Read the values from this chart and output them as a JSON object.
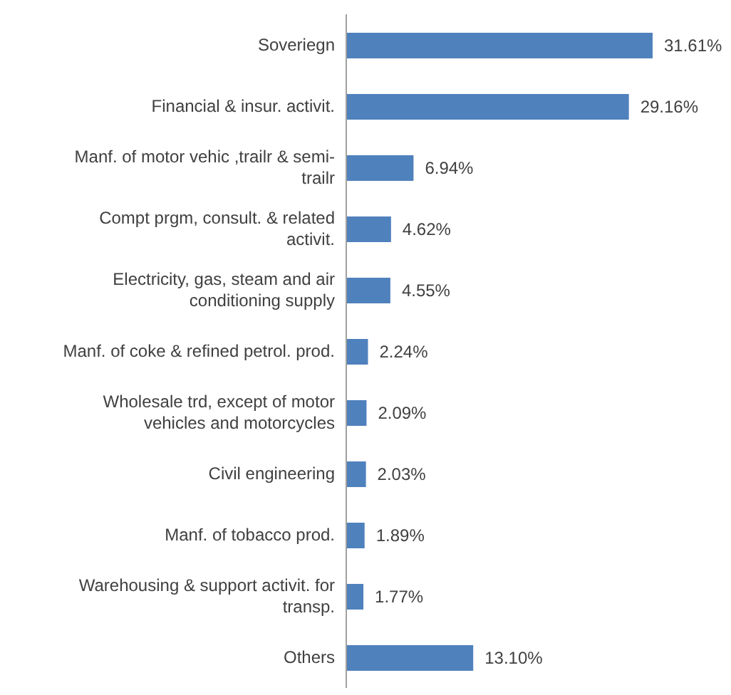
{
  "chart_data": {
    "type": "bar",
    "orientation": "horizontal",
    "categories": [
      "Soveriegn",
      "Financial & insur. activit.",
      "Manf. of motor vehic ,trailr & semi-trailr",
      "Compt prgm, consult. & related activit.",
      "Electricity, gas, steam and air conditioning supply",
      "Manf. of coke & refined petrol. prod.",
      "Wholesale trd, except of motor vehicles and motorcycles",
      "Civil engineering",
      "Manf. of tobacco prod.",
      "Warehousing & support activit. for transp.",
      "Others"
    ],
    "values": [
      31.61,
      29.16,
      6.94,
      4.62,
      4.55,
      2.24,
      2.09,
      2.03,
      1.89,
      1.77,
      13.1
    ],
    "value_labels": [
      "31.61%",
      "29.16%",
      "6.94%",
      "4.62%",
      "4.55%",
      "2.24%",
      "2.09%",
      "2.03%",
      "1.89%",
      "1.77%",
      "13.10%"
    ],
    "color": "#4f81bd"
  }
}
